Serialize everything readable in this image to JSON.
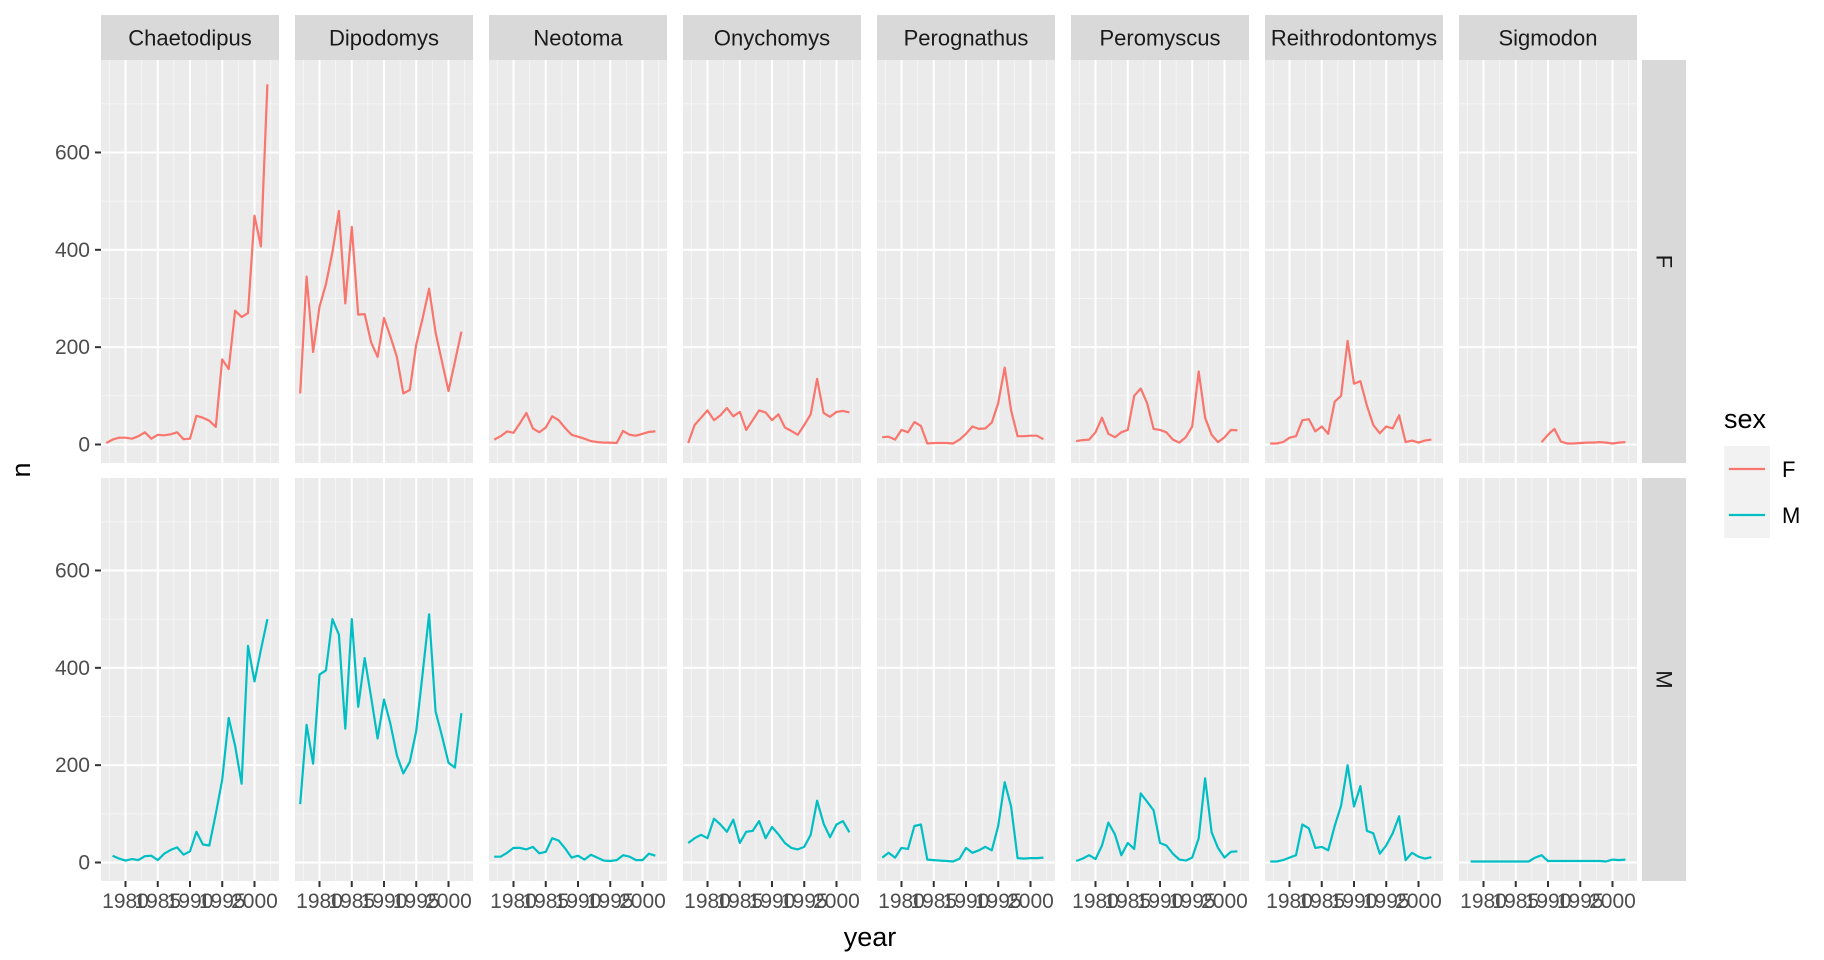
{
  "chart_data": {
    "type": "line",
    "facet_columns": [
      "Chaetodipus",
      "Dipodomys",
      "Neotoma",
      "Onychomys",
      "Perognathus",
      "Peromyscus",
      "Reithrodontomys",
      "Sigmodon"
    ],
    "facet_rows": [
      "F",
      "M"
    ],
    "xlabel": "year",
    "ylabel": "n",
    "xlim": [
      1976.2,
      2003.8
    ],
    "ylim": [
      -38,
      790
    ],
    "x_ticks": [
      1980,
      1985,
      1990,
      1995,
      2000
    ],
    "y_ticks": [
      0,
      200,
      400,
      600
    ],
    "grid": true,
    "legend": {
      "title": "sex",
      "position": "right",
      "entries": [
        "F",
        "M"
      ]
    },
    "colors": {
      "F": "#F8766D",
      "M": "#00BFC4"
    },
    "series": [
      {
        "genus": "Chaetodipus",
        "sex": "F",
        "x": [
          1977,
          1978,
          1979,
          1980,
          1981,
          1982,
          1983,
          1984,
          1985,
          1986,
          1987,
          1988,
          1989,
          1990,
          1991,
          1992,
          1993,
          1994,
          1995,
          1996,
          1997,
          1998,
          1999,
          2000,
          2001,
          2002
        ],
        "y": [
          3,
          10,
          14,
          14,
          12,
          17,
          25,
          12,
          20,
          19,
          21,
          25,
          11,
          12,
          59,
          55,
          49,
          36,
          175,
          155,
          275,
          262,
          270,
          470,
          407,
          740
        ]
      },
      {
        "genus": "Chaetodipus",
        "sex": "M",
        "x": [
          1978,
          1979,
          1980,
          1981,
          1982,
          1983,
          1984,
          1985,
          1986,
          1987,
          1988,
          1989,
          1990,
          1991,
          1992,
          1993,
          1994,
          1995,
          1996,
          1997,
          1998,
          1999,
          2000,
          2001,
          2002
        ],
        "y": [
          14,
          8,
          4,
          7,
          5,
          13,
          14,
          5,
          18,
          26,
          31,
          16,
          23,
          63,
          37,
          35,
          100,
          170,
          297,
          240,
          162,
          445,
          372,
          437,
          500
        ]
      },
      {
        "genus": "Dipodomys",
        "sex": "F",
        "x": [
          1977,
          1978,
          1979,
          1980,
          1981,
          1982,
          1983,
          1984,
          1985,
          1986,
          1987,
          1988,
          1989,
          1990,
          1991,
          1992,
          1993,
          1994,
          1995,
          1996,
          1997,
          1998,
          1999,
          2000,
          2001,
          2002
        ],
        "y": [
          105,
          345,
          190,
          283,
          330,
          395,
          480,
          290,
          447,
          267,
          268,
          210,
          180,
          260,
          222,
          180,
          105,
          112,
          205,
          260,
          320,
          230,
          170,
          110,
          170,
          232
        ]
      },
      {
        "genus": "Dipodomys",
        "sex": "M",
        "x": [
          1977,
          1978,
          1979,
          1980,
          1981,
          1982,
          1983,
          1984,
          1985,
          1986,
          1987,
          1988,
          1989,
          1990,
          1991,
          1992,
          1993,
          1994,
          1995,
          1996,
          1997,
          1998,
          1999,
          2000,
          2001,
          2002
        ],
        "y": [
          120,
          283,
          203,
          386,
          395,
          500,
          468,
          275,
          500,
          320,
          420,
          340,
          255,
          335,
          285,
          220,
          183,
          207,
          270,
          390,
          510,
          310,
          260,
          205,
          195,
          307
        ]
      },
      {
        "genus": "Neotoma",
        "sex": "F",
        "x": [
          1977,
          1978,
          1979,
          1980,
          1981,
          1982,
          1983,
          1984,
          1985,
          1986,
          1987,
          1988,
          1989,
          1990,
          1991,
          1992,
          1993,
          1994,
          1995,
          1996,
          1997,
          1998,
          1999,
          2000,
          2001,
          2002
        ],
        "y": [
          10,
          17,
          27,
          24,
          44,
          65,
          33,
          25,
          35,
          58,
          50,
          34,
          20,
          16,
          12,
          7,
          5,
          4,
          4,
          3,
          28,
          20,
          18,
          22,
          26,
          27
        ]
      },
      {
        "genus": "Neotoma",
        "sex": "M",
        "x": [
          1977,
          1978,
          1979,
          1980,
          1981,
          1982,
          1983,
          1984,
          1985,
          1986,
          1987,
          1988,
          1989,
          1990,
          1991,
          1992,
          1993,
          1994,
          1995,
          1996,
          1997,
          1998,
          1999,
          2000,
          2001,
          2002
        ],
        "y": [
          12,
          12,
          20,
          30,
          30,
          27,
          32,
          19,
          22,
          50,
          45,
          29,
          10,
          14,
          6,
          16,
          10,
          4,
          3,
          5,
          15,
          12,
          5,
          5,
          18,
          14
        ]
      },
      {
        "genus": "Onychomys",
        "sex": "F",
        "x": [
          1977,
          1978,
          1979,
          1980,
          1981,
          1982,
          1983,
          1984,
          1985,
          1986,
          1987,
          1988,
          1989,
          1990,
          1991,
          1992,
          1993,
          1994,
          1995,
          1996,
          1997,
          1998,
          1999,
          2000,
          2001,
          2002
        ],
        "y": [
          3,
          40,
          55,
          70,
          50,
          60,
          75,
          58,
          67,
          30,
          50,
          70,
          66,
          50,
          62,
          35,
          28,
          20,
          40,
          62,
          135,
          65,
          57,
          67,
          69,
          66
        ]
      },
      {
        "genus": "Onychomys",
        "sex": "M",
        "x": [
          1977,
          1978,
          1979,
          1980,
          1981,
          1982,
          1983,
          1984,
          1985,
          1986,
          1987,
          1988,
          1989,
          1990,
          1991,
          1992,
          1993,
          1994,
          1995,
          1996,
          1997,
          1998,
          1999,
          2000,
          2001,
          2002
        ],
        "y": [
          40,
          50,
          57,
          50,
          90,
          78,
          63,
          88,
          40,
          63,
          65,
          85,
          50,
          73,
          58,
          40,
          30,
          27,
          32,
          57,
          127,
          80,
          52,
          78,
          85,
          62
        ]
      },
      {
        "genus": "Perognathus",
        "sex": "F",
        "x": [
          1977,
          1978,
          1979,
          1980,
          1981,
          1982,
          1983,
          1984,
          1985,
          1986,
          1987,
          1988,
          1989,
          1990,
          1991,
          1992,
          1993,
          1994,
          1995,
          1996,
          1997,
          1998,
          1999,
          2000,
          2001,
          2002
        ],
        "y": [
          15,
          16,
          10,
          30,
          25,
          46,
          38,
          2,
          3,
          3,
          3,
          2,
          10,
          22,
          37,
          32,
          33,
          45,
          85,
          158,
          70,
          17,
          17,
          18,
          18,
          11
        ]
      },
      {
        "genus": "Perognathus",
        "sex": "M",
        "x": [
          1977,
          1978,
          1979,
          1980,
          1981,
          1982,
          1983,
          1984,
          1985,
          1986,
          1987,
          1988,
          1989,
          1990,
          1991,
          1992,
          1993,
          1994,
          1995,
          1996,
          1997,
          1998,
          1999,
          2000,
          2001,
          2002
        ],
        "y": [
          10,
          20,
          10,
          30,
          28,
          75,
          78,
          6,
          5,
          4,
          3,
          2,
          8,
          30,
          20,
          25,
          32,
          25,
          75,
          165,
          115,
          9,
          8,
          9,
          9,
          10
        ]
      },
      {
        "genus": "Peromyscus",
        "sex": "F",
        "x": [
          1977,
          1978,
          1979,
          1980,
          1981,
          1982,
          1983,
          1984,
          1985,
          1986,
          1987,
          1988,
          1989,
          1990,
          1991,
          1992,
          1993,
          1994,
          1995,
          1996,
          1997,
          1998,
          1999,
          2000,
          2001,
          2002
        ],
        "y": [
          7,
          9,
          10,
          25,
          55,
          22,
          15,
          25,
          30,
          100,
          115,
          85,
          32,
          30,
          25,
          10,
          4,
          15,
          37,
          150,
          55,
          20,
          5,
          15,
          30,
          29
        ]
      },
      {
        "genus": "Peromyscus",
        "sex": "M",
        "x": [
          1977,
          1978,
          1979,
          1980,
          1981,
          1982,
          1983,
          1984,
          1985,
          1986,
          1987,
          1988,
          1989,
          1990,
          1991,
          1992,
          1993,
          1994,
          1995,
          1996,
          1997,
          1998,
          1999,
          2000,
          2001,
          2002
        ],
        "y": [
          3,
          8,
          15,
          7,
          35,
          82,
          58,
          15,
          40,
          28,
          142,
          125,
          107,
          40,
          35,
          18,
          6,
          4,
          10,
          50,
          173,
          62,
          30,
          10,
          22,
          23
        ]
      },
      {
        "genus": "Reithrodontomys",
        "sex": "F",
        "x": [
          1977,
          1978,
          1979,
          1980,
          1981,
          1982,
          1983,
          1984,
          1985,
          1986,
          1987,
          1988,
          1989,
          1990,
          1991,
          1992,
          1993,
          1994,
          1995,
          1996,
          1997,
          1998,
          1999,
          2000,
          2001,
          2002
        ],
        "y": [
          2,
          2,
          5,
          14,
          17,
          50,
          52,
          27,
          37,
          22,
          88,
          100,
          213,
          125,
          130,
          80,
          40,
          23,
          37,
          33,
          60,
          5,
          8,
          4,
          8,
          10
        ]
      },
      {
        "genus": "Reithrodontomys",
        "sex": "M",
        "x": [
          1977,
          1978,
          1979,
          1980,
          1981,
          1982,
          1983,
          1984,
          1985,
          1986,
          1987,
          1988,
          1989,
          1990,
          1991,
          1992,
          1993,
          1994,
          1995,
          1996,
          1997,
          1998,
          1999,
          2000,
          2001,
          2002
        ],
        "y": [
          2,
          2,
          5,
          10,
          15,
          78,
          70,
          30,
          32,
          25,
          75,
          117,
          200,
          115,
          157,
          65,
          60,
          18,
          35,
          60,
          95,
          5,
          20,
          12,
          8,
          11
        ]
      },
      {
        "genus": "Sigmodon",
        "sex": "F",
        "x": [
          1989,
          1990,
          1991,
          1992,
          1993,
          1994,
          1995,
          1996,
          1997,
          1998,
          1999,
          2000,
          2001,
          2002
        ],
        "y": [
          5,
          20,
          32,
          6,
          2,
          2,
          3,
          4,
          4,
          5,
          4,
          2,
          4,
          5
        ]
      },
      {
        "genus": "Sigmodon",
        "sex": "M",
        "x": [
          1978,
          1979,
          1980,
          1981,
          1982,
          1983,
          1984,
          1985,
          1986,
          1987,
          1988,
          1989,
          1990,
          1991,
          1992,
          1993,
          1994,
          1995,
          1996,
          1997,
          1998,
          1999,
          2000,
          2001,
          2002
        ],
        "y": [
          2,
          2,
          2,
          2,
          2,
          2,
          2,
          2,
          2,
          2,
          10,
          15,
          3,
          3,
          3,
          3,
          3,
          3,
          3,
          3,
          3,
          2,
          6,
          5,
          6
        ]
      }
    ]
  }
}
